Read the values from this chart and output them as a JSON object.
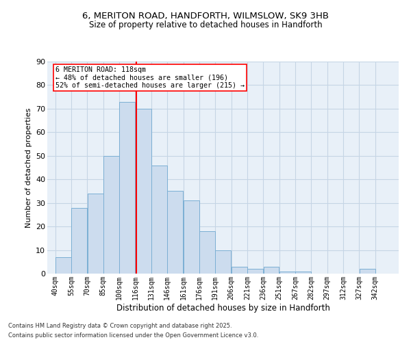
{
  "title_line1": "6, MERITON ROAD, HANDFORTH, WILMSLOW, SK9 3HB",
  "title_line2": "Size of property relative to detached houses in Handforth",
  "xlabel": "Distribution of detached houses by size in Handforth",
  "ylabel": "Number of detached properties",
  "categories": [
    "40sqm",
    "55sqm",
    "70sqm",
    "85sqm",
    "100sqm",
    "116sqm",
    "131sqm",
    "146sqm",
    "161sqm",
    "176sqm",
    "191sqm",
    "206sqm",
    "221sqm",
    "236sqm",
    "251sqm",
    "267sqm",
    "282sqm",
    "297sqm",
    "312sqm",
    "327sqm",
    "342sqm"
  ],
  "all_heights": [
    7,
    28,
    34,
    50,
    73,
    70,
    46,
    35,
    31,
    18,
    10,
    3,
    2,
    3,
    1,
    1,
    0,
    0,
    0,
    2,
    0
  ],
  "bar_fill": "#ccdcee",
  "bar_edge": "#7bafd4",
  "grid_color": "#c5d5e5",
  "bg_color": "#e8f0f8",
  "vline_color": "red",
  "annotation_text": "6 MERITON ROAD: 118sqm\n← 48% of detached houses are smaller (196)\n52% of semi-detached houses are larger (215) →",
  "footnote1": "Contains HM Land Registry data © Crown copyright and database right 2025.",
  "footnote2": "Contains public sector information licensed under the Open Government Licence v3.0.",
  "ylim": [
    0,
    90
  ],
  "yticks": [
    0,
    10,
    20,
    30,
    40,
    50,
    60,
    70,
    80,
    90
  ]
}
